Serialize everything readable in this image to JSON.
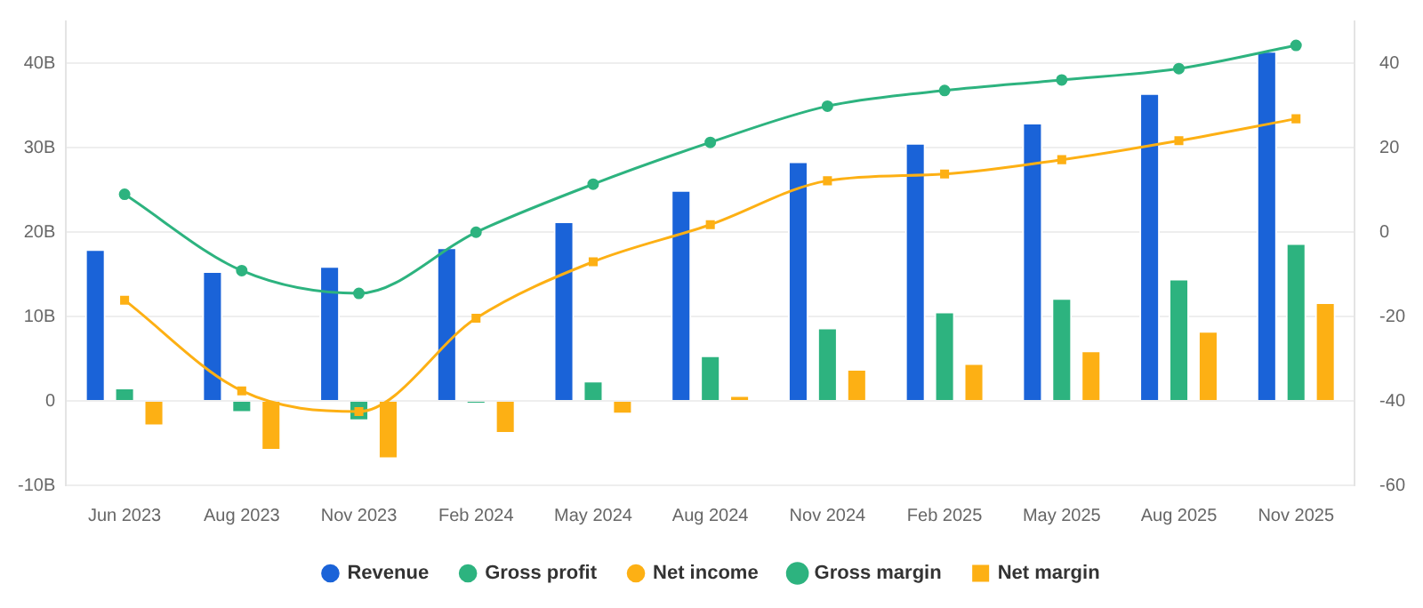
{
  "chart_data": {
    "type": "bar",
    "categories": [
      "Jun 2023",
      "Aug 2023",
      "Nov 2023",
      "Feb 2024",
      "May 2024",
      "Aug 2024",
      "Nov 2024",
      "Feb 2025",
      "May 2025",
      "Aug 2025",
      "Nov 2025"
    ],
    "series": [
      {
        "name": "Revenue",
        "color": "#1a63d8",
        "values": [
          18.0,
          15.4,
          16.0,
          18.2,
          21.3,
          25.0,
          28.4,
          30.6,
          33.0,
          36.5,
          41.5
        ]
      },
      {
        "name": "Gross profit",
        "color": "#2db37f",
        "values": [
          1.6,
          -1.4,
          -2.4,
          -0.3,
          2.4,
          5.4,
          8.7,
          10.6,
          12.2,
          14.5,
          18.7
        ]
      },
      {
        "name": "Net income",
        "color": "#fdb014",
        "values": [
          -3.0,
          -5.9,
          -6.9,
          -3.9,
          -1.6,
          0.7,
          3.8,
          4.5,
          6.0,
          8.3,
          11.7
        ]
      },
      {
        "name": "Gross margin",
        "type": "line",
        "axis": "y2",
        "marker": "circle",
        "color": "#2db37f",
        "values": [
          9.0,
          -9.1,
          -14.5,
          0,
          11.4,
          21.3,
          29.9,
          33.6,
          36.1,
          38.8,
          44.3
        ]
      },
      {
        "name": "Net margin",
        "type": "line",
        "axis": "y2",
        "marker": "square",
        "color": "#fdb014",
        "values": [
          -16.1,
          -37.6,
          -42.5,
          -20.4,
          -7.0,
          1.8,
          12.2,
          13.8,
          17.2,
          21.7,
          26.9
        ]
      }
    ],
    "ylim": [
      -10,
      45
    ],
    "yticks": [
      {
        "value": -10,
        "label": "-10B"
      },
      0,
      {
        "value": 10,
        "label": "10B"
      },
      {
        "value": 20,
        "label": "20B"
      },
      {
        "value": 30,
        "label": "30B"
      },
      {
        "value": 40,
        "label": "40B"
      }
    ],
    "y2lim": [
      -60,
      50
    ],
    "y2ticks": [
      -60,
      -40,
      -20,
      0,
      20,
      40
    ],
    "grid": "y",
    "legend": "bottom"
  }
}
